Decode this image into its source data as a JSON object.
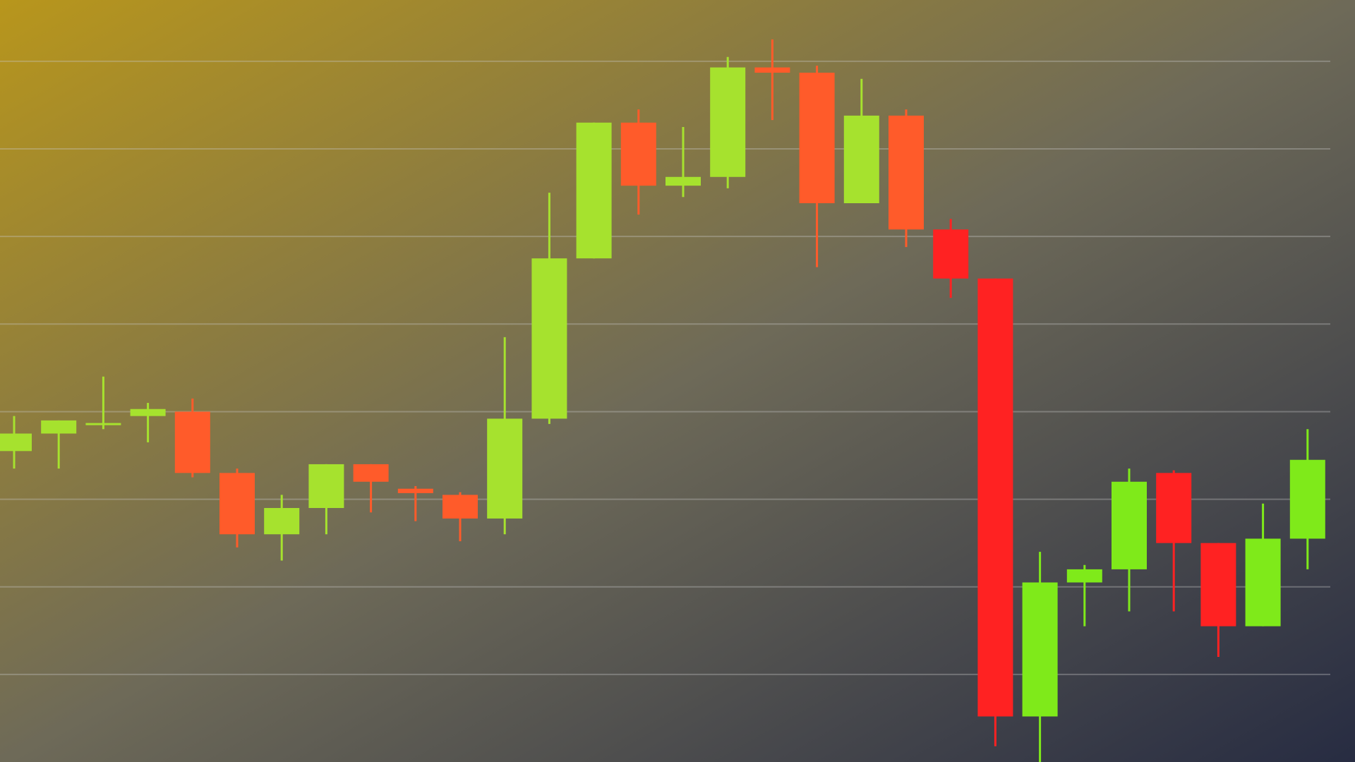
{
  "colors": {
    "background_start": "#B8961C",
    "background_mid": "#6E6A58",
    "background_end": "#272C42",
    "gridline": "#C8C8C8",
    "bullish_colors": [
      "#A6E22E",
      "#7FEA1A"
    ],
    "bearish_colors": [
      "#FF5B2A",
      "#FF2222"
    ]
  },
  "chart_data": {
    "type": "candlestick",
    "title": "",
    "xlabel": "",
    "ylabel": "",
    "grid": true,
    "ylim": [
      0,
      8.7
    ],
    "gridlines": [
      1,
      2,
      3,
      4,
      5,
      6,
      7,
      8
    ],
    "candles": [
      {
        "open": 3.55,
        "high": 3.95,
        "low": 3.35,
        "close": 3.75
      },
      {
        "open": 3.75,
        "high": 3.9,
        "low": 3.35,
        "close": 3.9
      },
      {
        "open": 3.85,
        "high": 4.4,
        "low": 3.8,
        "close": 3.87
      },
      {
        "open": 3.95,
        "high": 4.1,
        "low": 3.65,
        "close": 4.03
      },
      {
        "open": 4.0,
        "high": 4.15,
        "low": 3.25,
        "close": 3.3
      },
      {
        "open": 3.3,
        "high": 3.35,
        "low": 2.45,
        "close": 2.6
      },
      {
        "open": 2.6,
        "high": 3.05,
        "low": 2.3,
        "close": 2.9
      },
      {
        "open": 2.9,
        "high": 3.4,
        "low": 2.6,
        "close": 3.4
      },
      {
        "open": 3.4,
        "high": 3.4,
        "low": 2.85,
        "close": 3.2
      },
      {
        "open": 3.12,
        "high": 3.15,
        "low": 2.75,
        "close": 3.07
      },
      {
        "open": 3.05,
        "high": 3.08,
        "low": 2.52,
        "close": 2.78
      },
      {
        "open": 2.78,
        "high": 4.85,
        "low": 2.6,
        "close": 3.92
      },
      {
        "open": 3.92,
        "high": 6.5,
        "low": 3.86,
        "close": 5.75
      },
      {
        "open": 5.75,
        "high": 7.3,
        "low": 5.75,
        "close": 7.3
      },
      {
        "open": 7.3,
        "high": 7.45,
        "low": 6.25,
        "close": 6.58
      },
      {
        "open": 6.58,
        "high": 7.25,
        "low": 6.45,
        "close": 6.68
      },
      {
        "open": 6.68,
        "high": 8.05,
        "low": 6.55,
        "close": 7.93
      },
      {
        "open": 7.93,
        "high": 8.25,
        "low": 7.33,
        "close": 7.87
      },
      {
        "open": 7.87,
        "high": 7.95,
        "low": 5.65,
        "close": 6.38
      },
      {
        "open": 6.38,
        "high": 7.8,
        "low": 6.38,
        "close": 7.38
      },
      {
        "open": 7.38,
        "high": 7.45,
        "low": 5.88,
        "close": 6.08
      },
      {
        "open": 6.08,
        "high": 6.2,
        "low": 5.3,
        "close": 5.52
      },
      {
        "open": 5.52,
        "high": 5.52,
        "low": 0.18,
        "close": 0.52
      },
      {
        "open": 0.52,
        "high": 2.4,
        "low": 0.0,
        "close": 2.05
      },
      {
        "open": 2.05,
        "high": 2.25,
        "low": 1.55,
        "close": 2.2
      },
      {
        "open": 2.2,
        "high": 3.35,
        "low": 1.72,
        "close": 3.2
      },
      {
        "open": 3.3,
        "high": 3.33,
        "low": 1.72,
        "close": 2.5
      },
      {
        "open": 2.5,
        "high": 2.5,
        "low": 1.2,
        "close": 1.55
      },
      {
        "open": 1.55,
        "high": 2.95,
        "low": 1.55,
        "close": 2.55
      },
      {
        "open": 2.55,
        "high": 3.8,
        "low": 2.2,
        "close": 3.45
      }
    ]
  }
}
